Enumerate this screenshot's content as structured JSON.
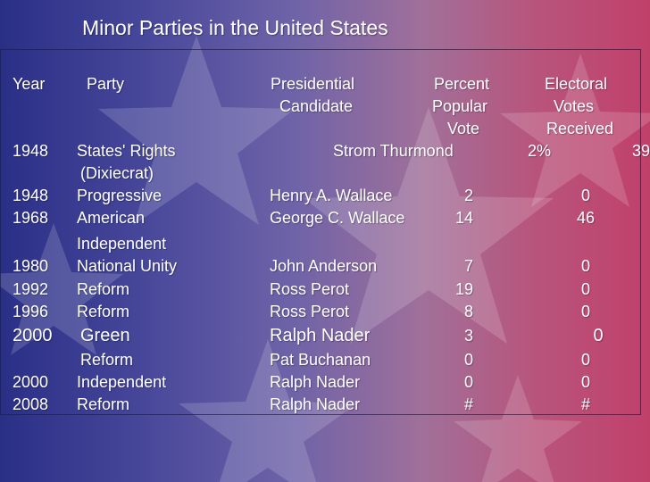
{
  "title": "Minor Parties in the United States",
  "headers": {
    "year": "Year",
    "party": "Party",
    "candidate_1": "Presidential",
    "candidate_2": "Candidate",
    "percent_1": "Percent",
    "percent_2": "Popular",
    "percent_3": "Vote",
    "electoral_1": "Electoral",
    "electoral_2": "Votes",
    "electoral_3": "Received"
  },
  "rows": [
    {
      "year": "1948",
      "party": "States' Rights",
      "party_2": "(Dixiecrat)",
      "candidate": "Strom Thurmond",
      "percent": "2%",
      "electoral": "39"
    },
    {
      "year": "1948",
      "party": "Progressive",
      "candidate": "Henry A. Wallace",
      "percent": "2",
      "electoral": "0"
    },
    {
      "year": "1968",
      "party": "American",
      "party_2": "Independent",
      "candidate": "George C. Wallace",
      "percent": "14",
      "electoral": "46"
    },
    {
      "year": "1980",
      "party": "National Unity",
      "candidate": "John Anderson",
      "percent": "7",
      "electoral": "0"
    },
    {
      "year": "1992",
      "party": "Reform",
      "candidate": "Ross Perot",
      "percent": "19",
      "electoral": "0"
    },
    {
      "year": "1996",
      "party": "Reform",
      "candidate": "Ross Perot",
      "percent": "8",
      "electoral": "0"
    },
    {
      "year": "2000",
      "party": "Green",
      "candidate": "Ralph Nader",
      "percent": "3",
      "electoral": "0"
    },
    {
      "year": "",
      "party": "Reform",
      "candidate": "Pat Buchanan",
      "percent": "0",
      "electoral": "0"
    },
    {
      "year": "2000",
      "party": "Independent",
      "candidate": "Ralph Nader",
      "percent": "0",
      "electoral": "0"
    },
    {
      "year": "2008",
      "party": "Reform",
      "candidate": "Ralph Nader",
      "percent": "#",
      "electoral": "#"
    }
  ]
}
